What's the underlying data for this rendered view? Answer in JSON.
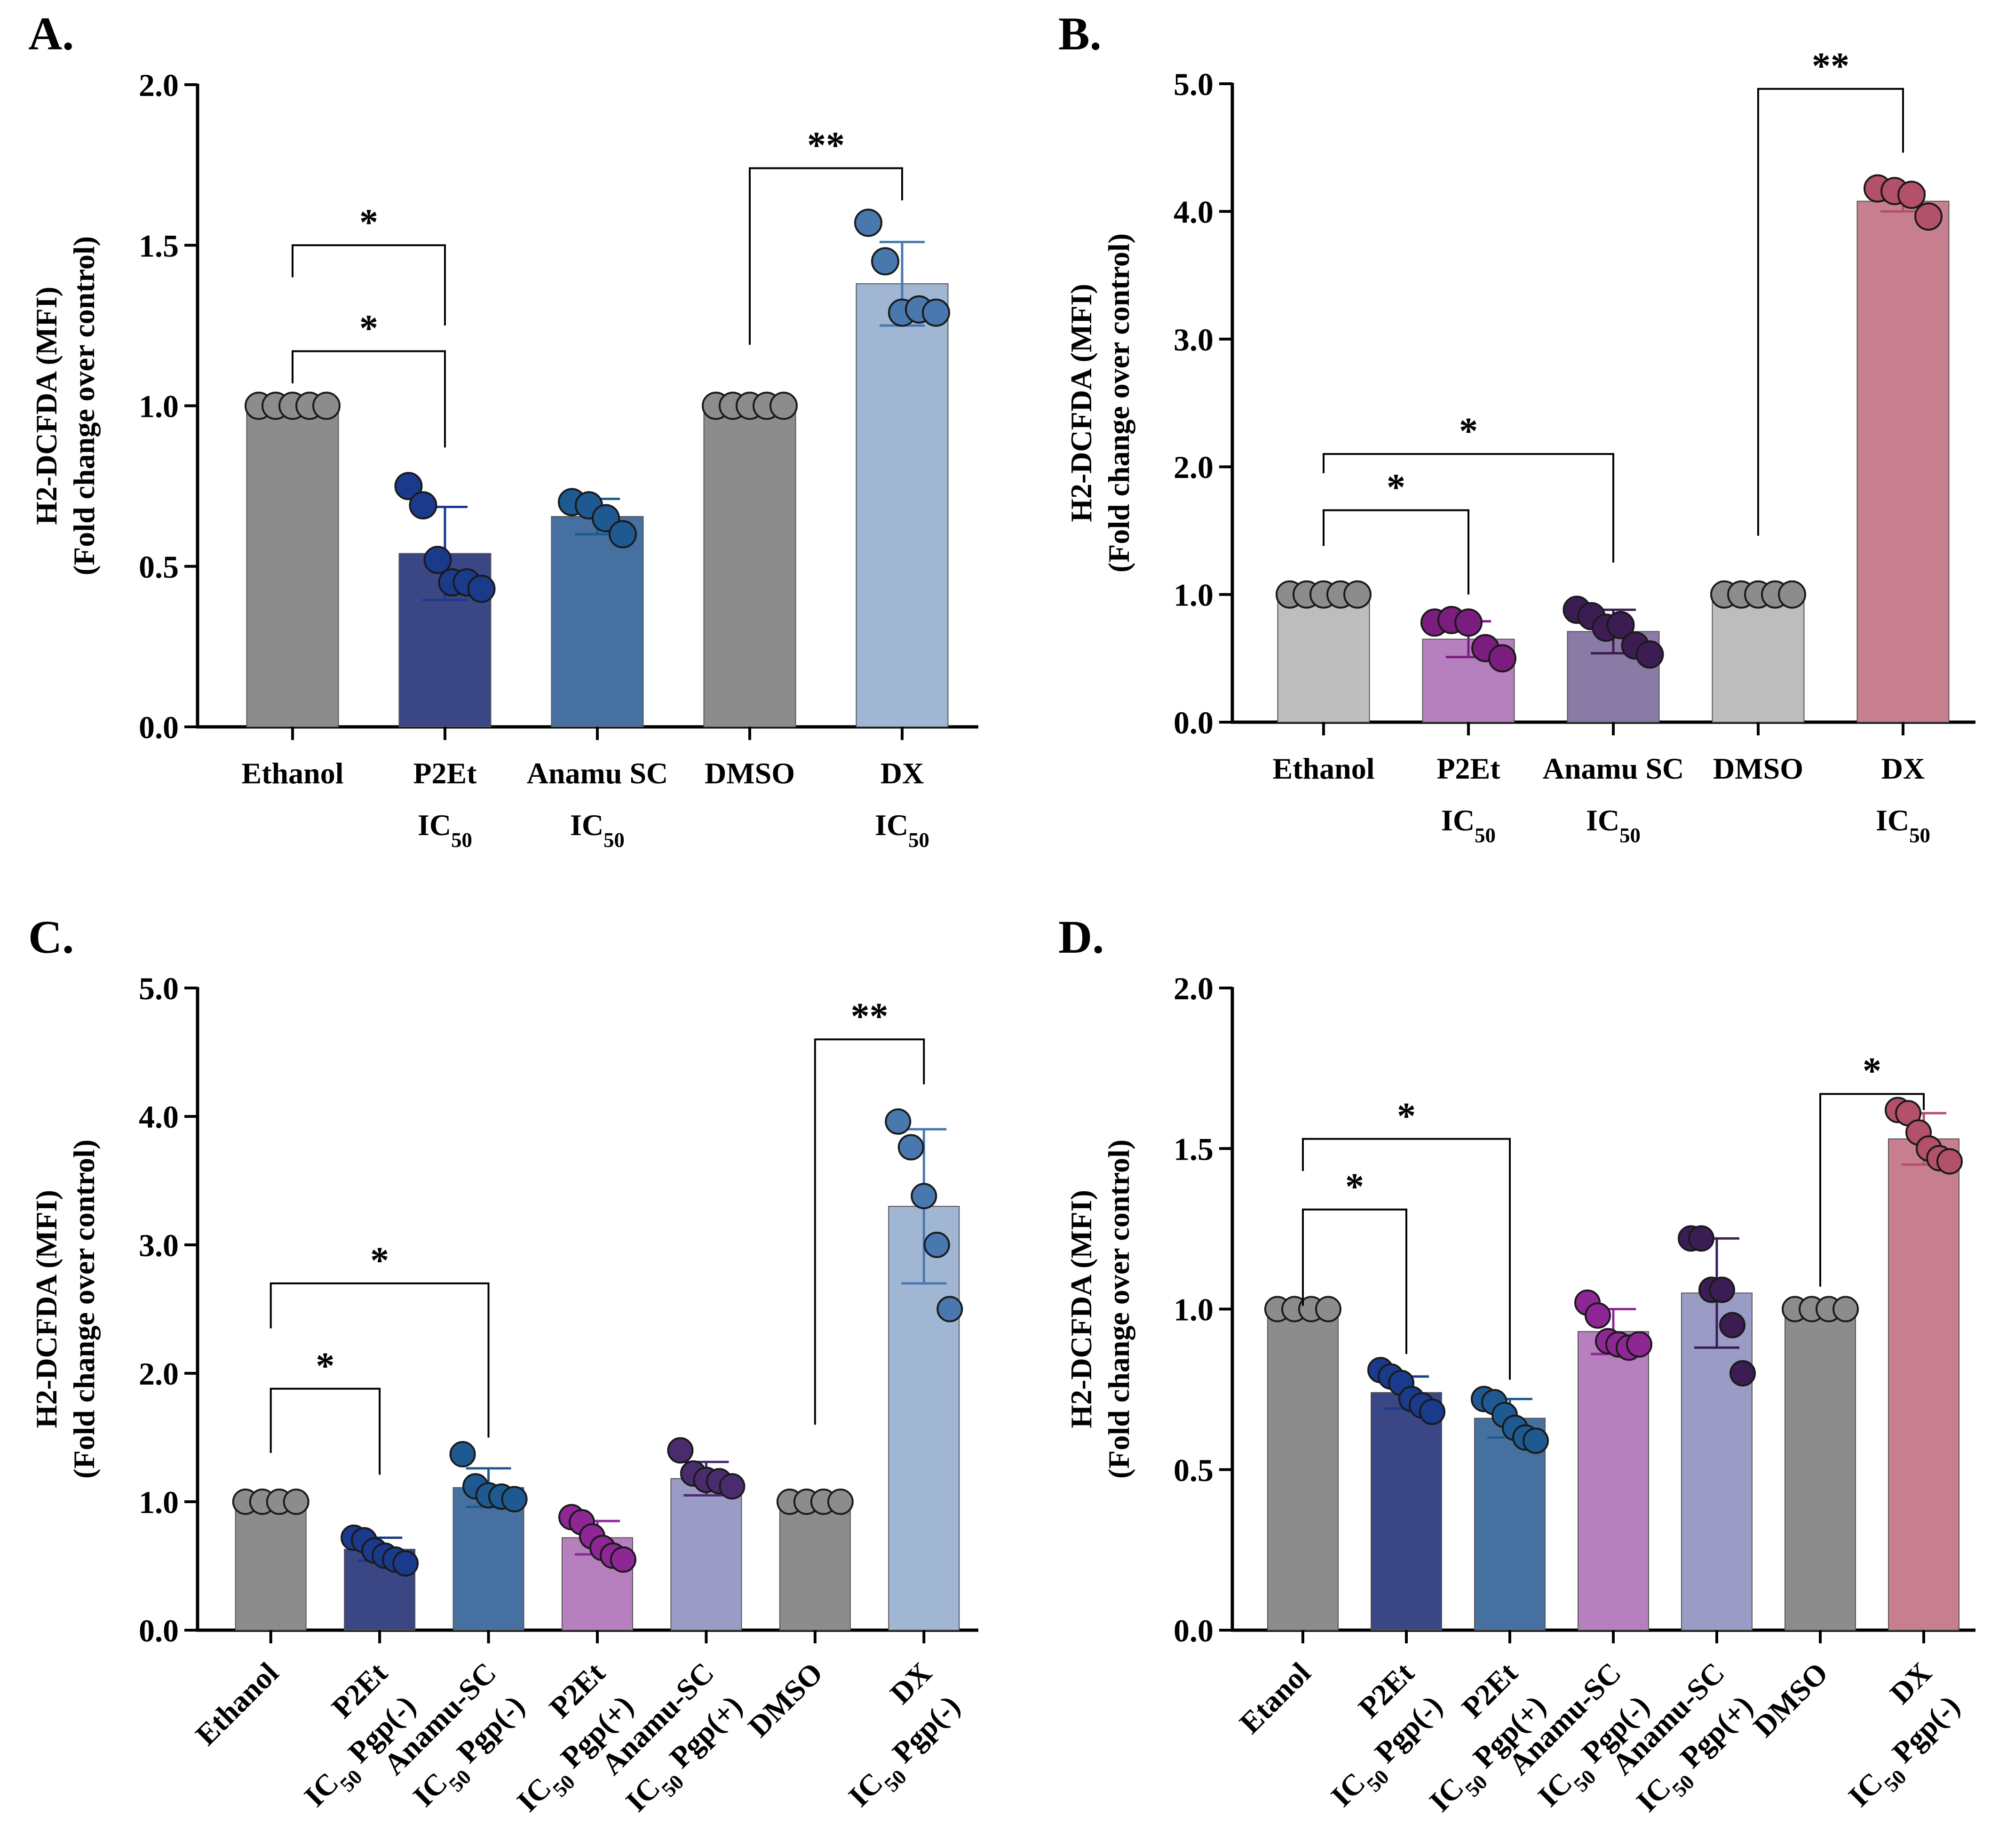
{
  "chart_data": [
    {
      "panel": "A.",
      "type": "bar",
      "ylabel": [
        "H2-DCFDA (MFI)",
        "(Fold change over control)"
      ],
      "ylim": [
        0,
        2.0
      ],
      "yticks": [
        "0.0",
        "0.5",
        "1.0",
        "1.5",
        "2.0"
      ],
      "categories": [
        {
          "lines": [
            "Ethanol"
          ]
        },
        {
          "lines": [
            "P2Et",
            "IC50"
          ]
        },
        {
          "lines": [
            "Anamu SC",
            "IC50"
          ]
        },
        {
          "lines": [
            "DMSO"
          ]
        },
        {
          "lines": [
            "DX",
            "IC50"
          ]
        }
      ],
      "values": [
        1.0,
        0.54,
        0.655,
        1.0,
        1.38
      ],
      "errors": [
        0,
        0.145,
        0.055,
        0,
        0.13
      ],
      "colors": [
        "#8c8c8c",
        "#3b4785",
        "#46709f",
        "#8c8c8c",
        "#a0b6d2"
      ],
      "point_colors": [
        "#8c8c8c",
        "#1a3a8c",
        "#1e5a91",
        "#8c8c8c",
        "#4878ae"
      ],
      "points": [
        [
          1.0,
          1.0,
          1.0,
          1.0,
          1.0
        ],
        [
          0.75,
          0.69,
          0.52,
          0.45,
          0.45,
          0.43
        ],
        [
          0.7,
          0.69,
          0.65,
          0.6
        ],
        [
          1.0,
          1.0,
          1.0,
          1.0,
          1.0
        ],
        [
          1.57,
          1.45,
          1.29,
          1.3,
          1.29
        ]
      ],
      "significance": [
        {
          "from": 0,
          "to": 1,
          "label": "*",
          "y": 1.5,
          "ldrop": 0.1,
          "rdrop": 0.25
        },
        {
          "from": 0,
          "to": 1,
          "label": "*",
          "y": 1.17,
          "ldrop": 0.1,
          "rdrop": 0.3
        },
        {
          "from": 3,
          "to": 4,
          "label": "**",
          "y": 1.74,
          "ldrop": 0.55,
          "rdrop": 0.1
        }
      ]
    },
    {
      "panel": "B.",
      "type": "bar",
      "ylabel": [
        "H2-DCFDA (MFI)",
        "(Fold change over control)"
      ],
      "ylim": [
        0,
        5.0
      ],
      "yticks": [
        "0.0",
        "1.0",
        "2.0",
        "3.0",
        "4.0",
        "5.0"
      ],
      "categories": [
        {
          "lines": [
            "Ethanol"
          ]
        },
        {
          "lines": [
            "P2Et",
            "IC50"
          ]
        },
        {
          "lines": [
            "Anamu SC",
            "IC50"
          ]
        },
        {
          "lines": [
            "DMSO"
          ]
        },
        {
          "lines": [
            "DX",
            "IC50"
          ]
        }
      ],
      "values": [
        1.0,
        0.65,
        0.71,
        1.0,
        4.08
      ],
      "errors": [
        0,
        0.14,
        0.17,
        0,
        0.08
      ],
      "colors": [
        "#bdbdbd",
        "#b67fbd",
        "#8a7aa6",
        "#bdbdbd",
        "#c77f8f"
      ],
      "point_colors": [
        "#8c8c8c",
        "#7a1d7f",
        "#3b1d54",
        "#8c8c8c",
        "#b3506a"
      ],
      "points": [
        [
          1.0,
          1.0,
          1.0,
          1.0,
          1.0
        ],
        [
          0.78,
          0.8,
          0.78,
          0.58,
          0.5
        ],
        [
          0.88,
          0.83,
          0.74,
          0.76,
          0.6,
          0.53
        ],
        [
          1.0,
          1.0,
          1.0,
          1.0,
          1.0
        ],
        [
          4.18,
          4.16,
          4.13,
          3.96
        ]
      ],
      "significance": [
        {
          "from": 0,
          "to": 1,
          "label": "*",
          "y": 1.66,
          "ldrop": 0.28,
          "rdrop": 0.66
        },
        {
          "from": 0,
          "to": 2,
          "label": "*",
          "y": 2.1,
          "ldrop": 0.15,
          "rdrop": 0.85
        },
        {
          "from": 3,
          "to": 4,
          "label": "**",
          "y": 4.96,
          "ldrop": 3.5,
          "rdrop": 0.5
        }
      ]
    },
    {
      "panel": "C.",
      "type": "bar",
      "ylabel": [
        "H2-DCFDA (MFI)",
        "(Fold change over control)"
      ],
      "ylim": [
        0,
        5.0
      ],
      "yticks": [
        "0.0",
        "1.0",
        "2.0",
        "3.0",
        "4.0",
        "5.0"
      ],
      "categories": [
        {
          "lines": [
            "Ethanol"
          ]
        },
        {
          "lines": [
            "P2Et",
            "IC50 Pgp(-)"
          ]
        },
        {
          "lines": [
            "Anamu-SC",
            "IC50 Pgp(-)"
          ]
        },
        {
          "lines": [
            "P2Et",
            "IC50 Pgp(+)"
          ]
        },
        {
          "lines": [
            "Anamu-SC",
            "IC50 Pgp(+)"
          ]
        },
        {
          "lines": [
            "DMSO"
          ]
        },
        {
          "lines": [
            "DX",
            "IC50 Pgp(-)"
          ]
        }
      ],
      "values": [
        1.0,
        0.63,
        1.11,
        0.72,
        1.18,
        1.0,
        3.3
      ],
      "errors": [
        0,
        0.09,
        0.15,
        0.13,
        0.13,
        0,
        0.6
      ],
      "colors": [
        "#8c8c8c",
        "#3b4785",
        "#46709f",
        "#b67fbd",
        "#9a9cc6",
        "#8c8c8c",
        "#a0b6d2"
      ],
      "point_colors": [
        "#8c8c8c",
        "#1a3a8c",
        "#1e5a91",
        "#8e2795",
        "#4a2c6e",
        "#8c8c8c",
        "#4878ae"
      ],
      "points": [
        [
          1.0,
          1.0,
          1.0,
          1.0
        ],
        [
          0.72,
          0.7,
          0.62,
          0.58,
          0.55,
          0.52
        ],
        [
          1.37,
          1.12,
          1.05,
          1.04,
          1.02
        ],
        [
          0.88,
          0.84,
          0.73,
          0.64,
          0.58,
          0.55
        ],
        [
          1.4,
          1.22,
          1.17,
          1.16,
          1.12
        ],
        [
          1.0,
          1.0,
          1.0,
          1.0
        ],
        [
          3.96,
          3.76,
          3.38,
          3.0,
          2.5
        ]
      ],
      "significance": [
        {
          "from": 0,
          "to": 1,
          "label": "*",
          "y": 1.88,
          "ldrop": 0.5,
          "rdrop": 0.67
        },
        {
          "from": 0,
          "to": 2,
          "label": "*",
          "y": 2.7,
          "ldrop": 0.35,
          "rdrop": 1.2
        },
        {
          "from": 5,
          "to": 6,
          "label": "**",
          "y": 4.6,
          "ldrop": 3.0,
          "rdrop": 0.35
        }
      ]
    },
    {
      "panel": "D.",
      "type": "bar",
      "ylabel": [
        "H2-DCFDA (MFI)",
        "(Fold change over control)"
      ],
      "ylim": [
        0,
        2.0
      ],
      "yticks": [
        "0.0",
        "0.5",
        "1.0",
        "1.5",
        "2.0"
      ],
      "categories": [
        {
          "lines": [
            "Etanol"
          ]
        },
        {
          "lines": [
            "P2Et",
            "IC50 Pgp(-)"
          ]
        },
        {
          "lines": [
            "P2Et",
            "IC50 Pgp(+)"
          ]
        },
        {
          "lines": [
            "Anamu-SC",
            "IC50 Pgp(-)"
          ]
        },
        {
          "lines": [
            "Anamu-SC",
            "IC50 Pgp(+)"
          ]
        },
        {
          "lines": [
            "DMSO"
          ]
        },
        {
          "lines": [
            "DX",
            "IC50 Pgp(-)"
          ]
        }
      ],
      "values": [
        1.0,
        0.74,
        0.66,
        0.93,
        1.05,
        1.0,
        1.53
      ],
      "errors": [
        0,
        0.05,
        0.06,
        0.07,
        0.17,
        0,
        0.08
      ],
      "colors": [
        "#8c8c8c",
        "#3b4785",
        "#46709f",
        "#b67fbd",
        "#9a9cc6",
        "#8c8c8c",
        "#c77f8f"
      ],
      "point_colors": [
        "#8c8c8c",
        "#1a3a8c",
        "#1e5a91",
        "#8e2795",
        "#3b1d54",
        "#8c8c8c",
        "#b3506a"
      ],
      "points": [
        [
          1.0,
          1.0,
          1.0,
          1.0
        ],
        [
          0.81,
          0.79,
          0.77,
          0.72,
          0.7,
          0.68
        ],
        [
          0.72,
          0.71,
          0.67,
          0.63,
          0.6,
          0.59
        ],
        [
          1.02,
          0.98,
          0.9,
          0.89,
          0.88,
          0.89
        ],
        [
          1.22,
          1.22,
          1.06,
          1.06,
          0.95,
          0.8
        ],
        [
          1.0,
          1.0,
          1.0,
          1.0
        ],
        [
          1.62,
          1.61,
          1.55,
          1.5,
          1.47,
          1.46
        ]
      ],
      "significance": [
        {
          "from": 0,
          "to": 1,
          "label": "*",
          "y": 1.31,
          "ldrop": 0.3,
          "rdrop": 0.45
        },
        {
          "from": 0,
          "to": 2,
          "label": "*",
          "y": 1.53,
          "ldrop": 0.1,
          "rdrop": 0.75
        },
        {
          "from": 5,
          "to": 6,
          "label": "*",
          "y": 1.67,
          "ldrop": 0.6,
          "rdrop": 0.05
        }
      ]
    }
  ]
}
